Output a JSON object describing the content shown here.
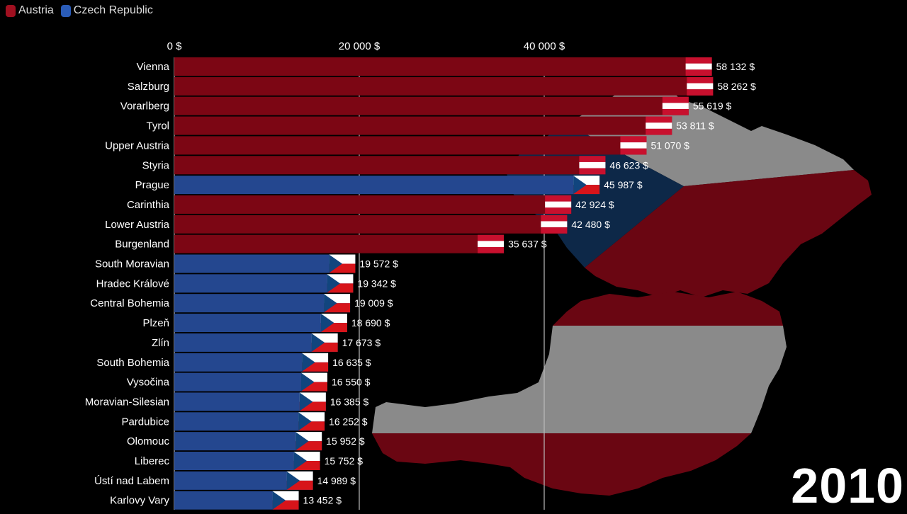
{
  "legend": {
    "items": [
      {
        "label": "Austria",
        "color": "#a01020"
      },
      {
        "label": "Czech Republic",
        "color": "#2a5cb8"
      }
    ]
  },
  "year": "2010",
  "chart_data": {
    "type": "bar",
    "orientation": "horizontal",
    "title": "",
    "xlabel": "",
    "ylabel": "",
    "xlim": [
      0,
      58262
    ],
    "xticks": [
      0,
      20000,
      40000
    ],
    "xtick_labels": [
      "0 $",
      "20 000 $",
      "40 000 $"
    ],
    "grid": true,
    "legend_position": "top-left",
    "series_colors": {
      "Austria": "#7c0614",
      "Czech Republic": "#24478f"
    },
    "categories": [
      "Vienna",
      "Salzburg",
      "Vorarlberg",
      "Tyrol",
      "Upper Austria",
      "Styria",
      "Prague",
      "Carinthia",
      "Lower Austria",
      "Burgenland",
      "South Moravian",
      "Hradec Králové",
      "Central Bohemia",
      "Plzeň",
      "Zlín",
      "South Bohemia",
      "Vysočina",
      "Moravian-Silesian",
      "Pardubice",
      "Olomouc",
      "Liberec",
      "Ústí nad Labem",
      "Karlovy Vary"
    ],
    "countries": [
      "Austria",
      "Austria",
      "Austria",
      "Austria",
      "Austria",
      "Austria",
      "Czech Republic",
      "Austria",
      "Austria",
      "Austria",
      "Czech Republic",
      "Czech Republic",
      "Czech Republic",
      "Czech Republic",
      "Czech Republic",
      "Czech Republic",
      "Czech Republic",
      "Czech Republic",
      "Czech Republic",
      "Czech Republic",
      "Czech Republic",
      "Czech Republic",
      "Czech Republic"
    ],
    "values": [
      58132,
      58262,
      55619,
      53811,
      51070,
      46623,
      45987,
      42924,
      42480,
      35637,
      19572,
      19342,
      19009,
      18690,
      17673,
      16635,
      16550,
      16385,
      16252,
      15952,
      15752,
      14989,
      13452
    ],
    "value_labels": [
      "58 132 $",
      "58 262 $",
      "55 619 $",
      "53 811 $",
      "51 070 $",
      "46 623 $",
      "45 987 $",
      "42 924 $",
      "42 480 $",
      "35 637 $",
      "19 572 $",
      "19 342 $",
      "19 009 $",
      "18 690 $",
      "17 673 $",
      "16 635 $",
      "16 550 $",
      "16 385 $",
      "16 252 $",
      "15 952 $",
      "15 752 $",
      "14 989 $",
      "13 452 $"
    ]
  }
}
